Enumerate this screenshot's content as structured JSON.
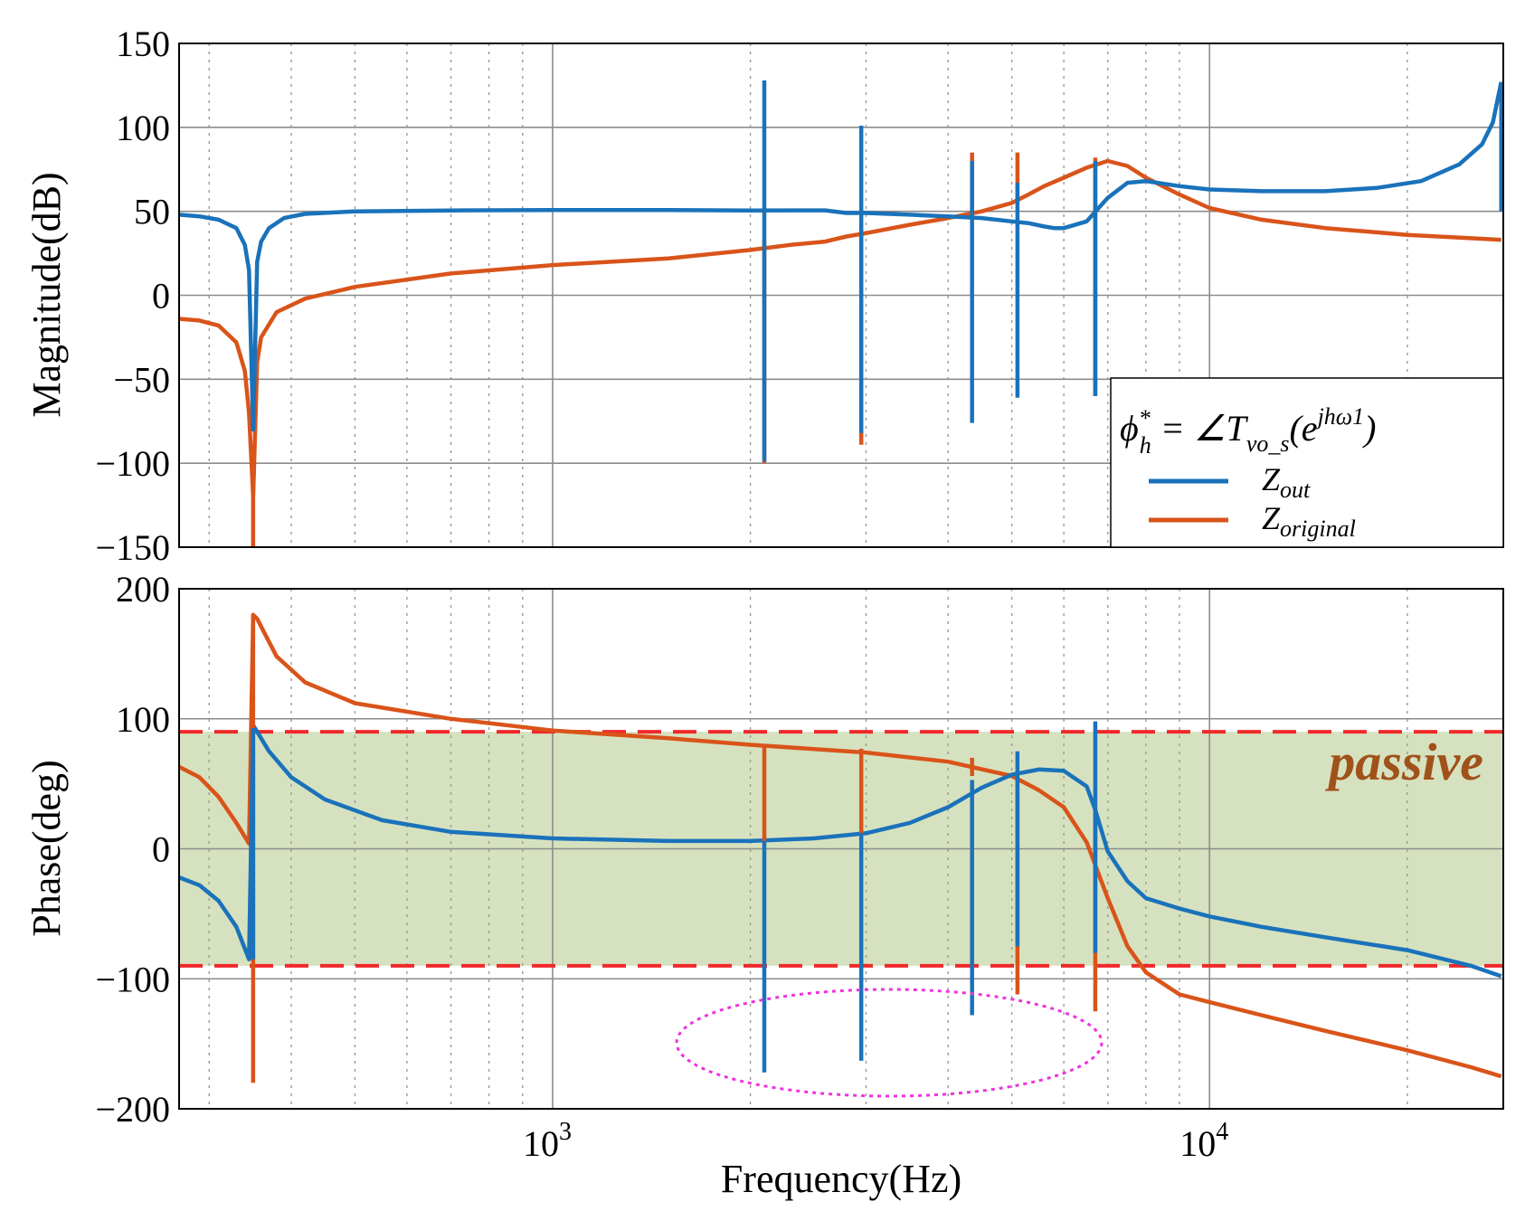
{
  "chart_data": [
    {
      "type": "line",
      "panel": "magnitude",
      "ylabel": "Magnitude(dB)",
      "ylim": [
        -150,
        150
      ],
      "yticks": [
        "150",
        "100",
        "50",
        "0",
        "−50",
        "−100",
        "−150"
      ],
      "xscale": "log",
      "xlim": [
        270,
        28000
      ],
      "grid": true,
      "legend": {
        "position": "bottom-right",
        "title_main": "ϕ",
        "title_sub": "h",
        "title_sup": "*",
        "title_mid": " = ∠T",
        "title_sub2": "vo_s",
        "title_paren": "(e",
        "title_exp": "jhω1",
        "title_close": ")",
        "entries": [
          {
            "label_base": "Z",
            "label_sub": "out",
            "color": "#1a72bb"
          },
          {
            "label_base": "Z",
            "label_sub": "original",
            "color": "#d9541a"
          }
        ]
      },
      "series": [
        {
          "name": "Z_out",
          "color": "#1a72bb",
          "x": [
            270,
            290,
            310,
            330,
            340,
            345,
            350,
            355,
            360,
            370,
            390,
            420,
            500,
            700,
            1000,
            1500,
            2000,
            2300,
            2600,
            2800,
            3000,
            3500,
            4000,
            4500,
            5000,
            5300,
            5600,
            5800,
            6000,
            6500,
            7000,
            7500,
            8000,
            9000,
            10000,
            12000,
            15000,
            18000,
            21000,
            24000,
            26000,
            27000,
            27800
          ],
          "y": [
            48,
            47,
            45,
            40,
            30,
            15,
            -80,
            20,
            32,
            40,
            46,
            48.5,
            50,
            50.5,
            50.8,
            50.8,
            50.5,
            50.6,
            50.6,
            49,
            49,
            48,
            47,
            46,
            44,
            43,
            41,
            40,
            40,
            44,
            58,
            67,
            68,
            65,
            63,
            62,
            62,
            64,
            68,
            78,
            90,
            103,
            127
          ]
        },
        {
          "name": "Z_original",
          "color": "#d9541a",
          "x": [
            270,
            290,
            310,
            330,
            340,
            345,
            350,
            355,
            360,
            380,
            420,
            500,
            700,
            1000,
            1500,
            2000,
            2300,
            2600,
            2800,
            3000,
            3500,
            4000,
            4500,
            5000,
            5300,
            5600,
            6000,
            6500,
            7000,
            7500,
            8000,
            9000,
            10000,
            12000,
            15000,
            20000,
            25000,
            27800
          ],
          "y": [
            -14,
            -15,
            -18,
            -28,
            -45,
            -70,
            -120,
            -40,
            -25,
            -10,
            -2,
            5,
            13,
            18,
            22,
            27,
            30,
            32,
            35,
            37,
            42,
            46,
            50,
            55,
            60,
            65,
            70,
            76,
            80,
            77,
            70,
            60,
            52,
            45,
            40,
            36,
            34,
            33
          ]
        },
        {
          "name": "Z_out spikes",
          "color": "#1a72bb",
          "spike_freqs": [
            2100,
            2950,
            4350,
            5100,
            6700,
            27800
          ],
          "spike_top": [
            128,
            101,
            80,
            67,
            80,
            127
          ],
          "spike_bottom": [
            -99,
            -82,
            -76,
            -61,
            -60,
            50
          ]
        },
        {
          "name": "Z_original spikes",
          "color": "#d9541a",
          "spike_freqs": [
            350,
            2100,
            2950,
            4350,
            5100,
            6700
          ],
          "spike_top": [
            -120,
            33,
            40,
            85,
            85,
            82
          ],
          "spike_bottom": [
            -150,
            -100,
            -89,
            48,
            55,
            -60
          ]
        }
      ]
    },
    {
      "type": "line",
      "panel": "phase",
      "ylabel": "Phase(deg)",
      "xlabel": "Frequency(Hz)",
      "ylim": [
        -200,
        200
      ],
      "yticks": [
        "200",
        "100",
        "0",
        "−100",
        "−200"
      ],
      "xticks": [
        {
          "base": "10",
          "exp": "3"
        },
        {
          "base": "10",
          "exp": "4"
        }
      ],
      "xscale": "log",
      "xlim": [
        270,
        28000
      ],
      "grid": true,
      "passive_band": [
        -90,
        90
      ],
      "passive_label": "passive",
      "series": [
        {
          "name": "Z_out",
          "color": "#1a72bb",
          "x": [
            270,
            290,
            310,
            330,
            345,
            350,
            355,
            370,
            400,
            450,
            550,
            700,
            1000,
            1500,
            2000,
            2500,
            3000,
            3500,
            4000,
            4500,
            5000,
            5500,
            6000,
            6500,
            6700,
            7000,
            7500,
            8000,
            9000,
            10000,
            12000,
            15000,
            20000,
            25000,
            27800
          ],
          "y": [
            -22,
            -28,
            -40,
            -60,
            -85,
            95,
            90,
            75,
            55,
            38,
            22,
            13,
            8,
            6,
            6,
            8,
            12,
            20,
            32,
            47,
            57,
            61,
            60,
            48,
            30,
            -2,
            -25,
            -38,
            -46,
            -52,
            -60,
            -68,
            -78,
            -90,
            -98
          ]
        },
        {
          "name": "Z_original",
          "color": "#d9541a",
          "x": [
            270,
            290,
            310,
            330,
            345,
            350,
            355,
            365,
            380,
            420,
            500,
            700,
            1000,
            1500,
            2000,
            3000,
            4000,
            5000,
            5500,
            6000,
            6500,
            7000,
            7500,
            8000,
            9000,
            10000,
            12000,
            15000,
            20000,
            25000,
            27800
          ],
          "y": [
            63,
            55,
            40,
            20,
            4,
            180,
            177,
            165,
            148,
            128,
            112,
            100,
            91,
            85,
            80,
            74,
            67,
            56,
            45,
            32,
            5,
            -38,
            -75,
            -95,
            -112,
            -118,
            -128,
            -140,
            -155,
            -168,
            -175
          ]
        },
        {
          "name": "Z_out spikes",
          "color": "#1a72bb",
          "spike_freqs": [
            350,
            2100,
            2950,
            4350,
            5100,
            6700
          ],
          "spike_top": [
            93,
            6,
            12,
            53,
            75,
            98
          ],
          "spike_bottom": [
            -85,
            -172,
            -163,
            -128,
            -75,
            -80
          ]
        },
        {
          "name": "Z_original spikes",
          "color": "#d9541a",
          "spike_freqs": [
            350,
            2100,
            2950,
            4350,
            5100,
            6700
          ],
          "spike_top": [
            180,
            80,
            77,
            70,
            55,
            30
          ],
          "spike_bottom": [
            -180,
            6,
            12,
            56,
            -112,
            -125
          ]
        }
      ]
    }
  ]
}
